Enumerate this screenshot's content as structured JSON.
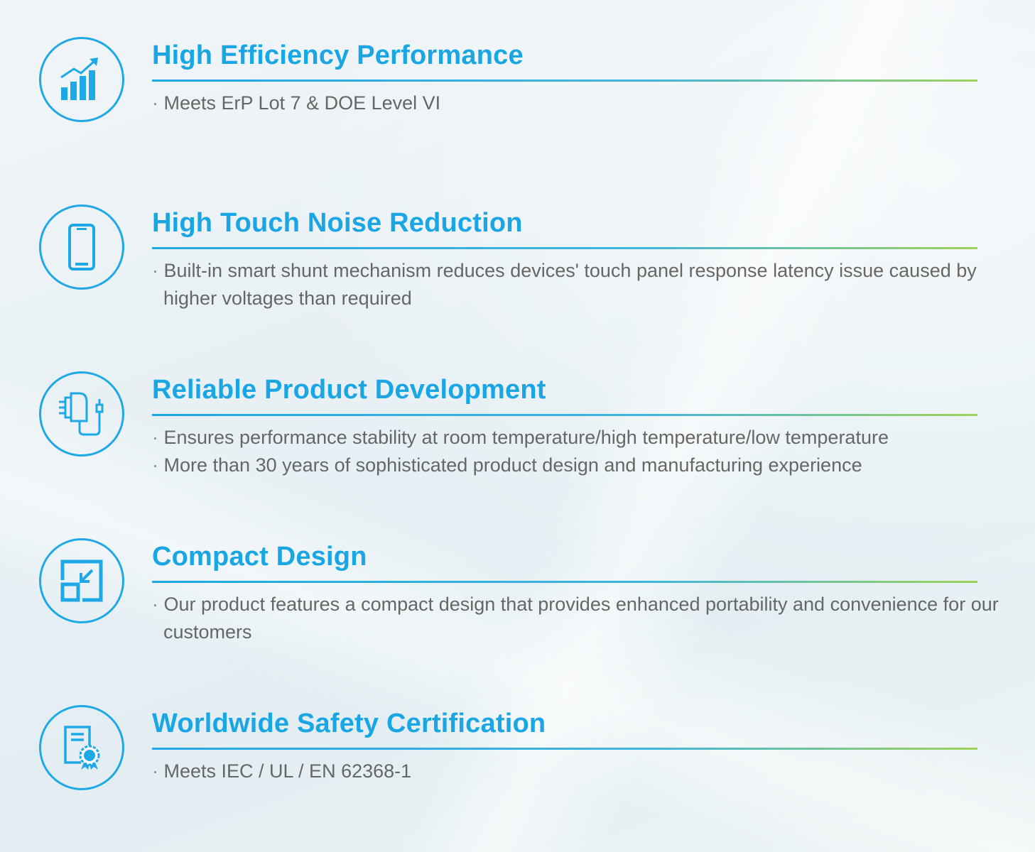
{
  "accent_color": "#1aa6e4",
  "features": [
    {
      "icon": "bar-chart-growth-icon",
      "title": "High Efficiency Performance",
      "bullets": [
        "Meets ErP Lot 7 & DOE Level VI"
      ]
    },
    {
      "icon": "smartphone-icon",
      "title": "High Touch Noise Reduction",
      "bullets": [
        "Built-in smart shunt mechanism reduces devices' touch panel response latency issue caused by higher voltages than required"
      ]
    },
    {
      "icon": "charger-adapter-icon",
      "title": "Reliable Product Development",
      "bullets": [
        "Ensures performance stability at room temperature/high temperature/low temperature",
        "More than 30 years of sophisticated product  design and manufacturing experience"
      ]
    },
    {
      "icon": "compact-resize-icon",
      "title": "Compact Design",
      "bullets": [
        "Our product features a compact design that provides enhanced portability and convenience for our customers"
      ]
    },
    {
      "icon": "certificate-icon",
      "title": "Worldwide Safety Certification",
      "bullets": [
        "Meets IEC / UL / EN 62368-1"
      ]
    }
  ]
}
